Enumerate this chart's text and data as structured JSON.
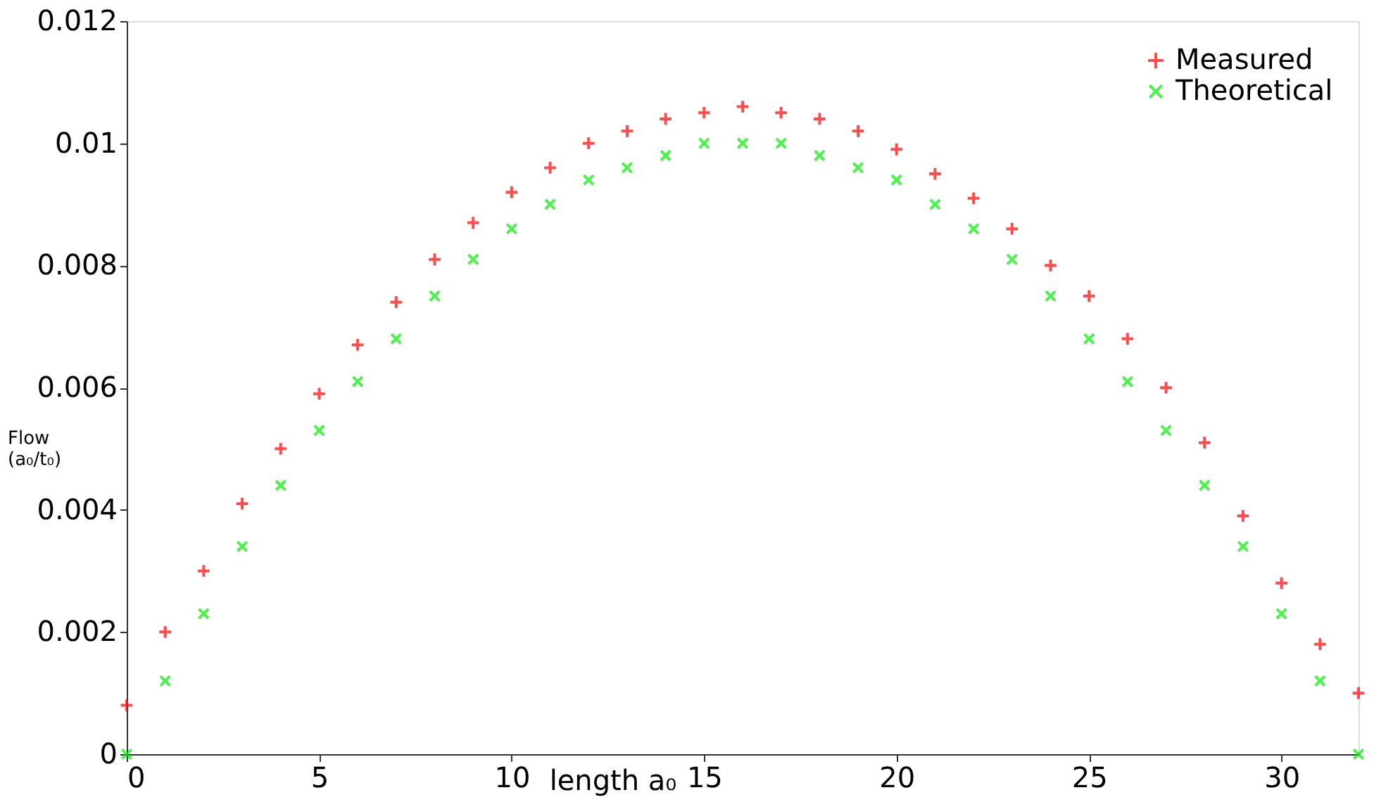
{
  "chart_data": {
    "type": "scatter",
    "xlabel": "length a₀",
    "ylabel": "Flow (a₀/t₀)",
    "xlim": [
      0,
      32
    ],
    "xticks": [
      0,
      5,
      10,
      15,
      20,
      25,
      30
    ],
    "ylim": [
      0,
      0.012
    ],
    "yticks": [
      0,
      0.002,
      0.004,
      0.006,
      0.008,
      0.01,
      0.012
    ],
    "grid": false,
    "legend": "top right",
    "x": [
      0,
      1,
      2,
      3,
      4,
      5,
      6,
      7,
      8,
      9,
      10,
      11,
      12,
      13,
      14,
      15,
      16,
      17,
      18,
      19,
      20,
      21,
      22,
      23,
      24,
      25,
      26,
      27,
      28,
      29,
      30,
      31,
      32
    ],
    "series": [
      {
        "name": "Measured",
        "color": "#ff0000",
        "marker": "cross",
        "values": [
          0.0008,
          0.002,
          0.003,
          0.0041,
          0.005,
          0.0059,
          0.0067,
          0.0074,
          0.0081,
          0.0087,
          0.0092,
          0.0096,
          0.01,
          0.0102,
          0.0104,
          0.0105,
          0.0106,
          0.0105,
          0.0104,
          0.0102,
          0.0099,
          0.0095,
          0.0091,
          0.0086,
          0.008,
          0.0075,
          0.0068,
          0.006,
          0.0051,
          0.0039,
          0.0028,
          0.0018,
          0.001
        ]
      },
      {
        "name": "Theoretical",
        "color": "#00ee00",
        "marker": "x",
        "values": [
          0,
          0.0012,
          0.0023,
          0.0034,
          0.0044,
          0.0053,
          0.0061,
          0.0068,
          0.0075,
          0.0081,
          0.0086,
          0.009,
          0.0094,
          0.0096,
          0.0098,
          0.01,
          0.01,
          0.01,
          0.0098,
          0.0096,
          0.0094,
          0.009,
          0.0086,
          0.0081,
          0.0075,
          0.0068,
          0.0061,
          0.0053,
          0.0044,
          0.0034,
          0.0023,
          0.0012,
          0
        ]
      }
    ]
  }
}
